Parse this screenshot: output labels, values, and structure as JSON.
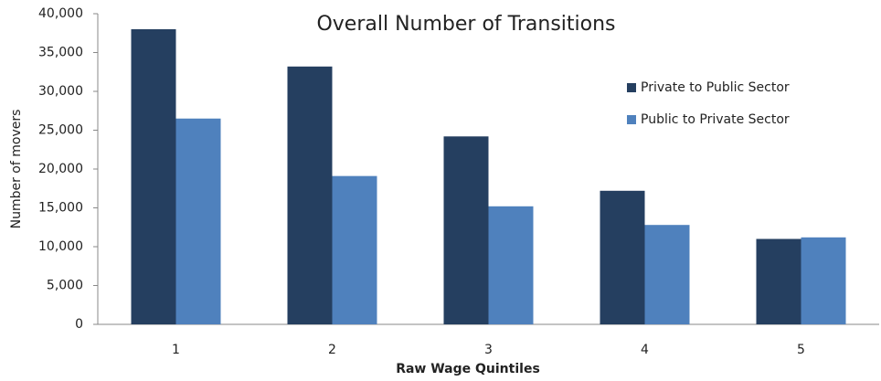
{
  "chart_data": {
    "type": "bar",
    "title": "Overall Number of Transitions",
    "x_label": "Raw Wage Quintiles",
    "y_label": "Number of movers",
    "categories": [
      "1",
      "2",
      "3",
      "4",
      "5"
    ],
    "series": [
      {
        "name": "Private to Public Sector",
        "color": "#253f60",
        "values": [
          38000,
          33200,
          24200,
          17200,
          11000
        ]
      },
      {
        "name": "Public to Private Sector",
        "color": "#4f81bd",
        "values": [
          26500,
          19100,
          15200,
          12800,
          11200
        ]
      }
    ],
    "ylim": [
      0,
      40000
    ],
    "yticks": [
      0,
      {
        "value": 5000,
        "label": "5,000"
      },
      {
        "value": 10000,
        "label": "10,000"
      },
      {
        "value": 15000,
        "label": "15,000"
      },
      {
        "value": 20000,
        "label": "20,000"
      },
      {
        "value": 25000,
        "label": "25,000"
      },
      {
        "value": 30000,
        "label": "30,000"
      },
      {
        "value": 35000,
        "label": "35,000"
      },
      {
        "value": 40000,
        "label": "40,000"
      }
    ],
    "grid": false,
    "legend": "upper right"
  }
}
